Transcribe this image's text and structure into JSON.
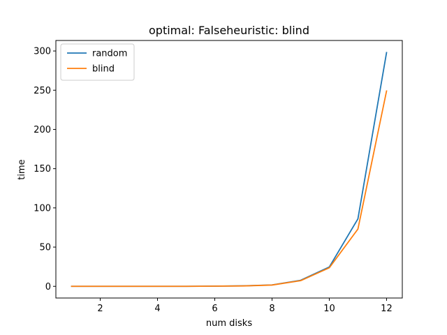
{
  "chart_data": {
    "type": "line",
    "title": "optimal: Falseheuristic: blind",
    "xlabel": "num disks",
    "ylabel": "time",
    "xlim": [
      0.45,
      12.55
    ],
    "ylim": [
      -14.9,
      313.4
    ],
    "xticks": [
      2,
      4,
      6,
      8,
      10,
      12
    ],
    "yticks": [
      0,
      50,
      100,
      150,
      200,
      250,
      300
    ],
    "x": [
      1,
      2,
      3,
      4,
      5,
      6,
      7,
      8,
      9,
      10,
      11,
      12
    ],
    "series": [
      {
        "name": "random",
        "color": "#1f77b4",
        "values": [
          0.0,
          0.0,
          0.0,
          0.0,
          0.0,
          0.2,
          0.6,
          1.8,
          7.7,
          24.6,
          86.0,
          298.0
        ]
      },
      {
        "name": "blind",
        "color": "#ff7f0e",
        "values": [
          0.0,
          0.0,
          0.0,
          0.0,
          0.0,
          0.2,
          0.5,
          1.6,
          7.2,
          23.6,
          73.0,
          249.0
        ]
      }
    ],
    "legend_position": "upper-left",
    "grid": false
  }
}
